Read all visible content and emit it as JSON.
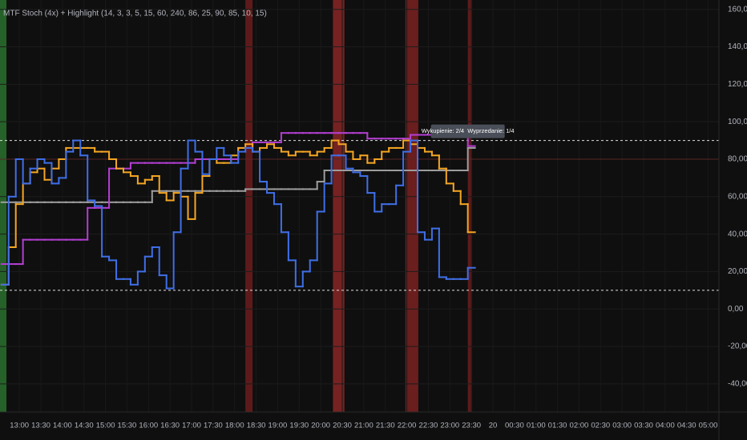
{
  "chart_data": {
    "type": "step-line",
    "title": "MTF Stoch (4x) + Highlight (14, 3, 3, 5, 15, 60, 240, 86, 25, 90, 85, 10, 15)",
    "annotation": "Wykupienie: 2/4  Wyprzedanie: 1/4",
    "xlim": [
      "12:33",
      "05:15"
    ],
    "xticks": [
      "13:00",
      "13:30",
      "14:00",
      "14:30",
      "15:00",
      "15:30",
      "16:00",
      "16:30",
      "17:00",
      "17:30",
      "18:00",
      "18:30",
      "19:00",
      "19:30",
      "20:00",
      "20:30",
      "21:00",
      "21:30",
      "22:00",
      "22:30",
      "23:00",
      "23:30",
      "20",
      "00:30",
      "01:00",
      "01:30",
      "02:00",
      "02:30",
      "03:00",
      "03:30",
      "04:00",
      "04:30",
      "05:00"
    ],
    "ylim": [
      -55,
      165
    ],
    "yticks": [
      {
        "value": 160,
        "label": "160,00"
      },
      {
        "value": 140,
        "label": "140,00"
      },
      {
        "value": 120,
        "label": "120,00"
      },
      {
        "value": 100,
        "label": "100,00"
      },
      {
        "value": 80,
        "label": "80,00"
      },
      {
        "value": 60,
        "label": "60,00"
      },
      {
        "value": 40,
        "label": "40,00"
      },
      {
        "value": 20,
        "label": "20,00"
      },
      {
        "value": 0,
        "label": "0,00"
      },
      {
        "value": -20,
        "label": "-20,00"
      },
      {
        "value": -40,
        "label": "-40,00"
      }
    ],
    "grid": true,
    "hlines": [
      {
        "value": 90,
        "color": "#e0e0e0",
        "dashed": true
      },
      {
        "value": 10,
        "color": "#e0e0e0",
        "dashed": true
      },
      {
        "value": 80,
        "color": "#5a2626",
        "dashed": false
      }
    ],
    "bands": [
      {
        "start": "12:33",
        "end": "12:42",
        "color": "#2e7d32"
      },
      {
        "start": "18:15",
        "end": "18:25",
        "color": "#7a1f1f"
      },
      {
        "start": "20:17",
        "end": "20:33",
        "color": "#9a2a2a"
      },
      {
        "start": "21:58",
        "end": "22:16",
        "color": "#8a2424"
      },
      {
        "start": "23:25",
        "end": "23:31",
        "color": "#7a1f1f"
      }
    ],
    "x": [
      "12:35",
      "12:45",
      "12:55",
      "13:05",
      "13:15",
      "13:25",
      "13:35",
      "13:45",
      "13:55",
      "14:05",
      "14:15",
      "14:25",
      "14:35",
      "14:45",
      "14:55",
      "15:05",
      "15:15",
      "15:25",
      "15:35",
      "15:45",
      "15:55",
      "16:05",
      "16:15",
      "16:25",
      "16:35",
      "16:45",
      "16:55",
      "17:05",
      "17:15",
      "17:25",
      "17:35",
      "17:45",
      "17:55",
      "18:05",
      "18:15",
      "18:25",
      "18:35",
      "18:45",
      "18:55",
      "19:05",
      "19:15",
      "19:25",
      "19:35",
      "19:45",
      "19:55",
      "20:05",
      "20:15",
      "20:25",
      "20:35",
      "20:45",
      "20:55",
      "21:05",
      "21:15",
      "21:25",
      "21:35",
      "21:45",
      "21:55",
      "22:05",
      "22:15",
      "22:25",
      "22:35",
      "22:45",
      "22:55",
      "23:05",
      "23:15",
      "23:25"
    ],
    "series": [
      {
        "color": "#9e9e9e",
        "values": [
          57,
          57,
          57,
          57,
          57,
          57,
          57,
          57,
          57,
          57,
          57,
          57,
          57,
          57,
          57,
          57,
          57,
          57,
          57,
          57,
          57,
          63,
          63,
          63,
          63,
          63,
          63,
          63,
          63,
          63,
          63,
          63,
          63,
          63,
          64,
          64,
          64,
          64,
          64,
          64,
          64,
          64,
          64,
          64,
          68,
          74,
          74,
          74,
          74,
          74,
          74,
          74,
          74,
          74,
          74,
          74,
          74,
          74,
          74,
          74,
          74,
          74,
          74,
          74,
          74,
          86
        ]
      },
      {
        "color": "#b43fd3",
        "values": [
          24,
          24,
          24,
          37,
          37,
          37,
          37,
          37,
          37,
          37,
          37,
          37,
          54,
          54,
          54,
          75,
          75,
          75,
          78,
          78,
          78,
          78,
          78,
          78,
          78,
          78,
          78,
          80,
          80,
          80,
          80,
          80,
          80,
          86,
          86,
          89,
          89,
          89,
          89,
          94,
          94,
          94,
          94,
          94,
          94,
          94,
          94,
          94,
          94,
          94,
          94,
          91,
          91,
          91,
          91,
          91,
          91,
          93,
          93,
          93,
          93,
          93,
          93,
          93,
          93,
          87
        ]
      },
      {
        "color": "#f5a623",
        "values": [
          13,
          33,
          56,
          67,
          73,
          75,
          69,
          75,
          80,
          86,
          86,
          86,
          86,
          84,
          84,
          80,
          75,
          73,
          71,
          67,
          69,
          71,
          62,
          58,
          62,
          60,
          48,
          62,
          71,
          80,
          78,
          78,
          82,
          86,
          88,
          84,
          86,
          88,
          86,
          84,
          82,
          84,
          84,
          82,
          84,
          86,
          90,
          88,
          84,
          80,
          82,
          78,
          80,
          84,
          86,
          86,
          90,
          88,
          86,
          84,
          82,
          75,
          67,
          63,
          56,
          41
        ]
      },
      {
        "color": "#3f6fe8",
        "values": [
          13,
          60,
          80,
          67,
          75,
          80,
          78,
          67,
          70,
          84,
          90,
          82,
          58,
          55,
          28,
          26,
          16,
          16,
          13,
          20,
          28,
          33,
          18,
          11,
          41,
          75,
          90,
          84,
          72,
          80,
          86,
          82,
          78,
          84,
          86,
          84,
          68,
          62,
          56,
          41,
          26,
          12,
          20,
          26,
          52,
          67,
          82,
          82,
          75,
          73,
          71,
          62,
          52,
          56,
          56,
          66,
          84,
          90,
          41,
          37,
          43,
          17,
          16,
          16,
          16,
          22
        ]
      }
    ]
  }
}
